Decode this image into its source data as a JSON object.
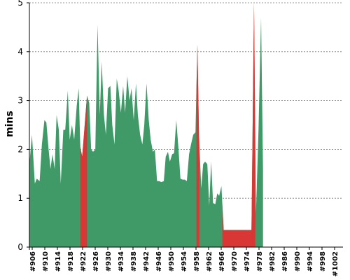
{
  "chart_data": {
    "type": "area",
    "title": "",
    "xlabel": "",
    "ylabel": "mins",
    "ylim": [
      0,
      5
    ],
    "yticks": [
      0,
      1,
      2,
      3,
      4,
      5
    ],
    "grid": true,
    "xrange": [
      906,
      1004
    ],
    "xticks": [
      "#906",
      "#910",
      "#914",
      "#918",
      "#922",
      "#926",
      "#930",
      "#934",
      "#938",
      "#942",
      "#946",
      "#950",
      "#954",
      "#958",
      "#962",
      "#966",
      "#970",
      "#974",
      "#978",
      "#982",
      "#986",
      "#990",
      "#994",
      "#998",
      "#1002"
    ],
    "colors": {
      "normal": "#3f9a68",
      "highlight": "#d93636"
    },
    "series": [
      {
        "values": [
          [
            906,
            1.7
          ],
          [
            906.8,
            2.3
          ],
          [
            907.7,
            1.3
          ],
          [
            908.3,
            1.4
          ],
          [
            909.2,
            1.35
          ],
          [
            909.9,
            2.1
          ],
          [
            910.7,
            2.6
          ],
          [
            911.3,
            2.55
          ],
          [
            912.0,
            2.0
          ],
          [
            912.6,
            1.6
          ],
          [
            913.2,
            1.9
          ],
          [
            913.9,
            1.6
          ],
          [
            914.5,
            2.7
          ],
          [
            915.2,
            2.4
          ],
          [
            915.8,
            1.3
          ],
          [
            916.6,
            2.4
          ],
          [
            917.2,
            2.4
          ],
          [
            918.0,
            3.2
          ],
          [
            918.6,
            2.2
          ],
          [
            919.3,
            2.5
          ],
          [
            920.0,
            2.2
          ],
          [
            920.8,
            2.9
          ],
          [
            921.4,
            3.25
          ],
          [
            921.9,
            2.05
          ],
          [
            922.5,
            1.85
          ],
          [
            923.4,
            2.6
          ],
          [
            924.0,
            3.1
          ],
          [
            924.7,
            2.95
          ],
          [
            925.3,
            2.0
          ],
          [
            925.9,
            1.95
          ],
          [
            926.6,
            2.0
          ],
          [
            927.3,
            4.55
          ],
          [
            928.0,
            2.7
          ],
          [
            928.6,
            3.8
          ],
          [
            929.3,
            2.7
          ],
          [
            929.9,
            2.3
          ],
          [
            930.6,
            3.25
          ],
          [
            931.3,
            3.3
          ],
          [
            931.9,
            2.5
          ],
          [
            932.6,
            2.1
          ],
          [
            933.3,
            3.45
          ],
          [
            933.9,
            3.2
          ],
          [
            934.6,
            2.75
          ],
          [
            935.3,
            3.3
          ],
          [
            935.9,
            2.75
          ],
          [
            936.6,
            3.5
          ],
          [
            937.3,
            3.0
          ],
          [
            937.9,
            3.25
          ],
          [
            938.6,
            2.6
          ],
          [
            939.3,
            3.35
          ],
          [
            939.9,
            2.7
          ],
          [
            940.6,
            2.3
          ],
          [
            941.3,
            2.1
          ],
          [
            941.9,
            2.5
          ],
          [
            942.6,
            3.35
          ],
          [
            943.3,
            2.6
          ],
          [
            943.9,
            2.2
          ],
          [
            944.6,
            1.95
          ],
          [
            945.2,
            2.0
          ],
          [
            945.9,
            1.35
          ],
          [
            946.6,
            1.35
          ],
          [
            947.2,
            1.33
          ],
          [
            948.0,
            1.35
          ],
          [
            948.6,
            1.85
          ],
          [
            949.3,
            1.95
          ],
          [
            949.9,
            1.75
          ],
          [
            950.6,
            1.9
          ],
          [
            951.2,
            1.92
          ],
          [
            951.9,
            2.6
          ],
          [
            952.6,
            2.0
          ],
          [
            953.2,
            1.4
          ],
          [
            953.9,
            1.38
          ],
          [
            954.6,
            1.38
          ],
          [
            955.2,
            1.35
          ],
          [
            955.9,
            1.9
          ],
          [
            956.5,
            2.1
          ],
          [
            957.2,
            2.3
          ],
          [
            957.9,
            2.35
          ],
          [
            958.5,
            4.15
          ],
          [
            959.0,
            2.3
          ],
          [
            959.7,
            1.2
          ],
          [
            960.3,
            1.7
          ],
          [
            960.9,
            1.75
          ],
          [
            961.6,
            1.7
          ],
          [
            962.2,
            0.85
          ],
          [
            962.8,
            1.75
          ],
          [
            963.4,
            0.9
          ],
          [
            964.1,
            0.88
          ],
          [
            964.7,
            1.1
          ],
          [
            965.3,
            1.05
          ],
          [
            966.0,
            1.25
          ],
          [
            966.7,
            0.35
          ],
          [
            967.3,
            0.35
          ],
          [
            968.0,
            0.35
          ],
          [
            970.0,
            0.35
          ],
          [
            972.0,
            0.35
          ],
          [
            974.0,
            0.35
          ],
          [
            975.4,
            0.35
          ],
          [
            976.2,
            5.0
          ],
          [
            976.8,
            0.7
          ],
          [
            977.6,
            2.4
          ],
          [
            978.4,
            4.7
          ],
          [
            979.0,
            1.6
          ]
        ]
      }
    ],
    "highlight_ranges": [
      [
        921.9,
        924.0
      ],
      [
        958.2,
        959.1
      ],
      [
        966.3,
        976.6
      ]
    ]
  }
}
